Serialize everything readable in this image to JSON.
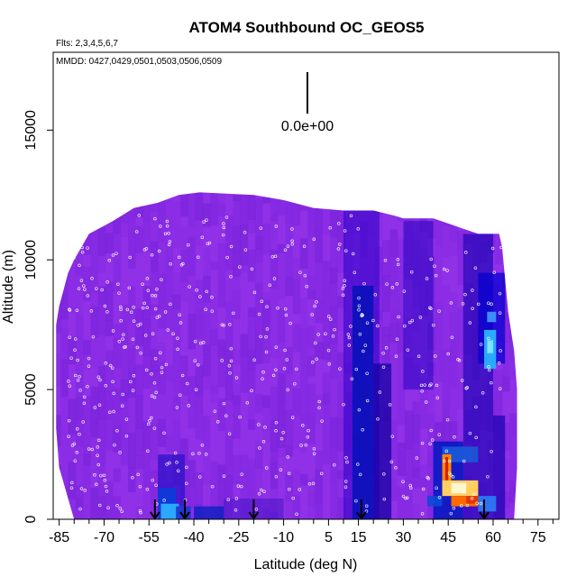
{
  "chart_data": {
    "type": "heatmap",
    "title": "ATOM4 Southbound OC_GEOS5",
    "flights_label": "Flts: 2,3,4,5,6,7",
    "dates_label": "MMDD: 0427,0429,0501,0503,0506,0509",
    "xlabel": "Latitude (deg N)",
    "ylabel": "Altitude (m)",
    "xlim": [
      -87,
      82
    ],
    "ylim": [
      0,
      18000
    ],
    "x_ticks": [
      -85,
      -70,
      -55,
      -40,
      -25,
      -10,
      5,
      15,
      30,
      45,
      60,
      75
    ],
    "x_ticks_minor": [
      -80,
      -75,
      -65,
      -60,
      -50,
      -45,
      -35,
      -30,
      -20,
      -15,
      -5,
      0,
      10,
      20,
      25,
      35,
      40,
      50,
      55,
      65,
      70,
      80
    ],
    "y_ticks": [
      0,
      5000,
      10000,
      15000
    ],
    "scale_label": "0.0e+00",
    "background_color": "#8a2be2",
    "profile_arrows_lat": [
      -53,
      -43,
      -20,
      16,
      57
    ],
    "curtain_outline": [
      [
        -86,
        7500
      ],
      [
        -85,
        8200
      ],
      [
        -82,
        9500
      ],
      [
        -80,
        10000
      ],
      [
        -75,
        11000
      ],
      [
        -67,
        11500
      ],
      [
        -60,
        12000
      ],
      [
        -52,
        12200
      ],
      [
        -45,
        12500
      ],
      [
        -38,
        12600
      ],
      [
        -20,
        12500
      ],
      [
        -10,
        12300
      ],
      [
        0,
        12000
      ],
      [
        10,
        11900
      ],
      [
        20,
        11900
      ],
      [
        27,
        11700
      ],
      [
        30,
        11600
      ],
      [
        40,
        11600
      ],
      [
        50,
        11200
      ],
      [
        55,
        11000
      ],
      [
        62,
        11000
      ],
      [
        63,
        10500
      ],
      [
        65,
        8000
      ],
      [
        67,
        6500
      ],
      [
        68,
        5000
      ],
      [
        68,
        2000
      ],
      [
        67,
        0
      ],
      [
        -80,
        0
      ],
      [
        -85,
        2000
      ],
      [
        -86,
        3500
      ]
    ],
    "patches": [
      {
        "lat": [
          10,
          22
        ],
        "alt": [
          0,
          12000
        ],
        "color": "#2d00c8",
        "opacity": 0.55
      },
      {
        "lat": [
          13,
          20
        ],
        "alt": [
          0,
          9000
        ],
        "color": "#0010b8",
        "opacity": 0.8
      },
      {
        "lat": [
          20,
          26
        ],
        "alt": [
          0,
          6000
        ],
        "color": "#1000a0",
        "opacity": 0.7
      },
      {
        "lat": [
          30,
          40
        ],
        "alt": [
          5000,
          11500
        ],
        "color": "#2200c0",
        "opacity": 0.5
      },
      {
        "lat": [
          40,
          50
        ],
        "alt": [
          0,
          3000
        ],
        "color": "#0018c0",
        "opacity": 0.85
      },
      {
        "lat": [
          50,
          60
        ],
        "alt": [
          0,
          11000
        ],
        "color": "#1400b0",
        "opacity": 0.6
      },
      {
        "lat": [
          55,
          64
        ],
        "alt": [
          6000,
          9500
        ],
        "color": "#0000d0",
        "opacity": 0.7
      },
      {
        "lat": [
          57,
          61
        ],
        "alt": [
          5800,
          7300
        ],
        "color": "#29a9ff",
        "opacity": 1.0
      },
      {
        "lat": [
          58,
          60
        ],
        "alt": [
          6400,
          6900
        ],
        "color": "#7fe0ff",
        "opacity": 1.0
      },
      {
        "lat": [
          58,
          61
        ],
        "alt": [
          7600,
          8000
        ],
        "color": "#3c8cff",
        "opacity": 1.0
      },
      {
        "lat": [
          60,
          64
        ],
        "alt": [
          0,
          4000
        ],
        "color": "#1a00b0",
        "opacity": 0.7
      },
      {
        "lat": [
          -52,
          -43
        ],
        "alt": [
          500,
          2500
        ],
        "color": "#2a10c8",
        "opacity": 0.7
      },
      {
        "lat": [
          -52,
          -46
        ],
        "alt": [
          0,
          1200
        ],
        "color": "#0a3cd8",
        "opacity": 0.9
      },
      {
        "lat": [
          -51,
          -45
        ],
        "alt": [
          0,
          600
        ],
        "color": "#2aa8ff",
        "opacity": 1.0
      },
      {
        "lat": [
          -46,
          -41
        ],
        "alt": [
          0,
          500
        ],
        "color": "#1838d0",
        "opacity": 0.9
      },
      {
        "lat": [
          -40,
          -30
        ],
        "alt": [
          0,
          500
        ],
        "color": "#0a20c0",
        "opacity": 0.8
      },
      {
        "lat": [
          -30,
          -10
        ],
        "alt": [
          0,
          800
        ],
        "color": "#3a10c0",
        "opacity": 0.45
      },
      {
        "lat": [
          43,
          55
        ],
        "alt": [
          2200,
          2800
        ],
        "color": "#1a5ad8",
        "opacity": 0.9
      },
      {
        "lat": [
          43,
          46
        ],
        "alt": [
          900,
          2500
        ],
        "color": "#ff8a00",
        "opacity": 1.0
      },
      {
        "lat": [
          44,
          45
        ],
        "alt": [
          1200,
          2400
        ],
        "color": "#d62000",
        "opacity": 1.0
      },
      {
        "lat": [
          43,
          55
        ],
        "alt": [
          900,
          1500
        ],
        "color": "#ffd060",
        "opacity": 1.0
      },
      {
        "lat": [
          46,
          51
        ],
        "alt": [
          1000,
          1400
        ],
        "color": "#fff6d0",
        "opacity": 1.0
      },
      {
        "lat": [
          46,
          55
        ],
        "alt": [
          500,
          900
        ],
        "color": "#ff6a00",
        "opacity": 1.0
      },
      {
        "lat": [
          51,
          55
        ],
        "alt": [
          600,
          900
        ],
        "color": "#e03a00",
        "opacity": 1.0
      },
      {
        "lat": [
          38,
          43
        ],
        "alt": [
          500,
          900
        ],
        "color": "#0a4ad8",
        "opacity": 0.9
      },
      {
        "lat": [
          55,
          61
        ],
        "alt": [
          300,
          900
        ],
        "color": "#2a7ef8",
        "opacity": 0.9
      }
    ]
  }
}
